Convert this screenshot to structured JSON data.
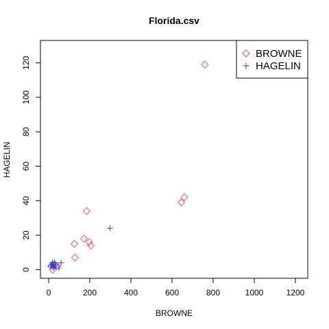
{
  "chart_data": {
    "type": "scatter",
    "title": "Florida.csv",
    "xlabel": "BROWNE",
    "ylabel": "HAGELIN",
    "xlim": [
      -40,
      1260
    ],
    "ylim": [
      -5,
      133
    ],
    "xticks": [
      0,
      200,
      400,
      600,
      800,
      1000,
      1200
    ],
    "yticks": [
      0,
      20,
      40,
      60,
      80,
      100,
      120
    ],
    "grid": false,
    "legend_position": "top-right",
    "series": [
      {
        "name": "BROWNE",
        "marker": "diamond",
        "color": "#df536b",
        "x": [
          13,
          20,
          30,
          40,
          125,
          128,
          172,
          185,
          197,
          205,
          645,
          660,
          760
        ],
        "y": [
          2,
          0,
          3,
          2,
          15,
          7,
          18,
          34,
          16,
          14,
          39,
          42,
          119
        ]
      },
      {
        "name": "HAGELIN",
        "marker": "plus",
        "color": "#2e3dc9",
        "x": [
          10,
          14,
          18,
          20,
          22,
          25,
          28,
          30,
          35,
          50,
          60,
          298
        ],
        "y": [
          2,
          3,
          4,
          2,
          3,
          1,
          4,
          2,
          3,
          1,
          4,
          24
        ]
      }
    ]
  }
}
